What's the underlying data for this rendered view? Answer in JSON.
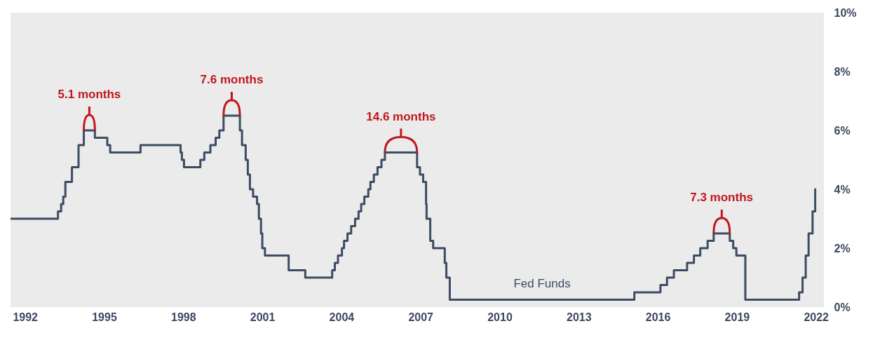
{
  "chart_data": {
    "type": "step",
    "x": [
      1991.45,
      1993.25,
      1993.37,
      1993.45,
      1993.53,
      1993.78,
      1994.03,
      1994.23,
      1994.65,
      1995.12,
      1995.23,
      1996.38,
      1997.9,
      1997.95,
      1998.03,
      1998.65,
      1998.8,
      1999.03,
      1999.23,
      1999.37,
      1999.53,
      2000.15,
      2000.23,
      2000.37,
      2000.45,
      2000.53,
      2000.65,
      2000.8,
      2000.87,
      2000.95,
      2001.0,
      2001.1,
      2002.0,
      2002.63,
      2003.65,
      2003.75,
      2003.87,
      2004.02,
      2004.1,
      2004.23,
      2004.37,
      2004.52,
      2004.65,
      2004.75,
      2004.87,
      2005.02,
      2005.1,
      2005.23,
      2005.37,
      2005.52,
      2005.65,
      2006.87,
      2006.98,
      2007.1,
      2007.21,
      2007.23,
      2007.37,
      2007.48,
      2007.92,
      2007.98,
      2008.11,
      2015.11,
      2016.1,
      2016.35,
      2016.61,
      2017.11,
      2017.37,
      2017.61,
      2017.89,
      2018.12,
      2018.73,
      2018.86,
      2018.98,
      2019.32,
      2021.36,
      2021.49,
      2021.61,
      2021.72,
      2021.87,
      2021.97,
      2022.0
    ],
    "series": [
      {
        "name": "Fed Funds",
        "color": "#3d4b63",
        "values": [
          3.0,
          3.25,
          3.5,
          3.75,
          4.25,
          4.75,
          5.5,
          6.0,
          5.75,
          5.5,
          5.25,
          5.5,
          5.25,
          5.0,
          4.75,
          5.0,
          5.25,
          5.5,
          5.75,
          6.0,
          6.5,
          6.0,
          5.5,
          5.0,
          4.5,
          4.0,
          3.75,
          3.5,
          3.0,
          2.5,
          2.0,
          1.75,
          1.25,
          1.0,
          1.25,
          1.5,
          1.75,
          2.0,
          2.25,
          2.5,
          2.75,
          3.0,
          3.25,
          3.5,
          3.75,
          4.0,
          4.25,
          4.5,
          4.75,
          5.0,
          5.25,
          4.75,
          4.5,
          4.25,
          3.5,
          3.0,
          2.25,
          2.0,
          1.5,
          1.0,
          0.25,
          0.5,
          0.75,
          1.0,
          1.25,
          1.5,
          1.75,
          2.0,
          2.25,
          2.5,
          2.25,
          2.0,
          1.75,
          0.25,
          0.5,
          1.0,
          1.75,
          2.5,
          3.25,
          4.0,
          4.0
        ]
      }
    ],
    "xlim": [
      1991.45,
      2022.3
    ],
    "xticks": [
      1992,
      1995,
      1998,
      2001,
      2004,
      2007,
      2010,
      2013,
      2016,
      2019,
      2022
    ],
    "ylim": [
      0,
      10
    ],
    "yticks": [
      {
        "value": 0,
        "label": "0%"
      },
      {
        "value": 2,
        "label": "2%"
      },
      {
        "value": 4,
        "label": "4%"
      },
      {
        "value": 6,
        "label": "6%"
      },
      {
        "value": 8,
        "label": "8%"
      },
      {
        "value": 10,
        "label": "10%"
      }
    ],
    "annotations": [
      {
        "text": "5.1 months",
        "x": 1994.44,
        "y": 6.0
      },
      {
        "text": "7.6 months",
        "x": 1999.84,
        "y": 6.5
      },
      {
        "text": "14.6 months",
        "x": 2006.26,
        "y": 5.25
      },
      {
        "text": "7.3 months",
        "x": 2018.42,
        "y": 2.5
      }
    ]
  }
}
